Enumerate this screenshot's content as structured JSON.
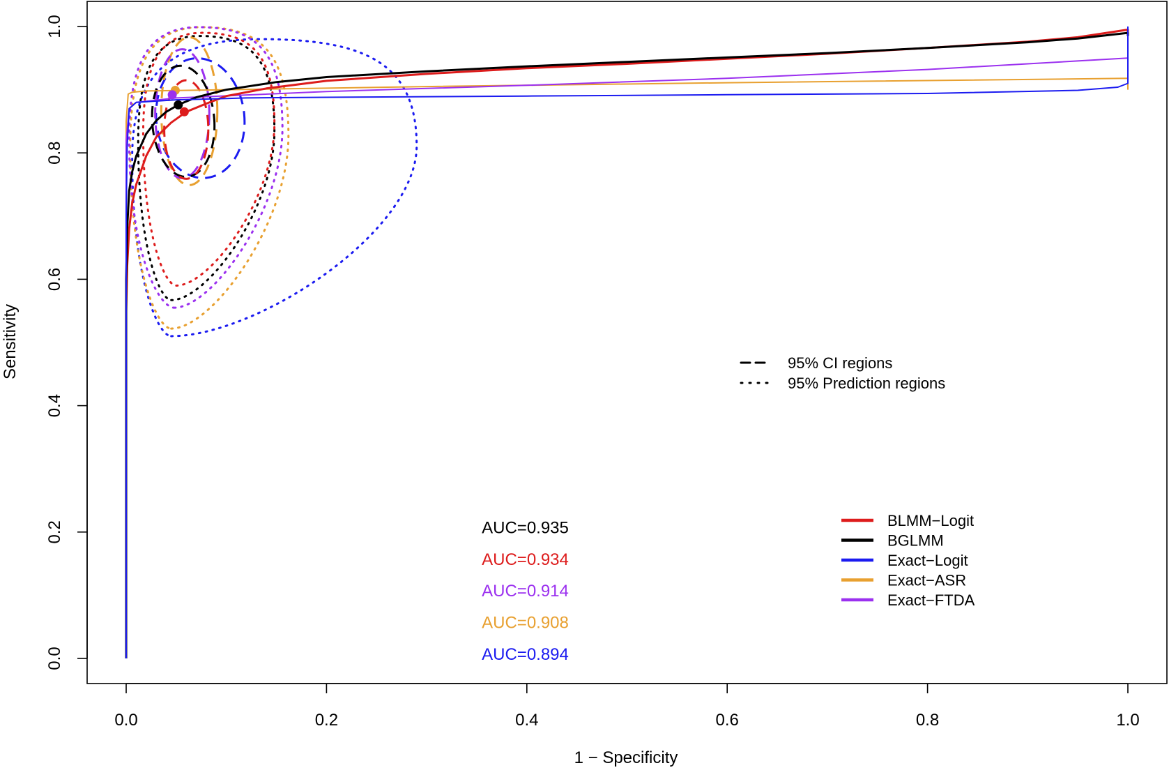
{
  "chart_data": {
    "type": "line",
    "title": "",
    "xlabel": "1 − Specificity",
    "ylabel": "Sensitivity",
    "xlim": [
      0,
      1
    ],
    "ylim": [
      0,
      1
    ],
    "x_ticks": [
      {
        "value": 0.0,
        "label": "0.0"
      },
      {
        "value": 0.2,
        "label": "0.2"
      },
      {
        "value": 0.4,
        "label": "0.4"
      },
      {
        "value": 0.6,
        "label": "0.6"
      },
      {
        "value": 0.8,
        "label": "0.8"
      },
      {
        "value": 1.0,
        "label": "1.0"
      }
    ],
    "y_ticks": [
      {
        "value": 0.0,
        "label": "0.0"
      },
      {
        "value": 0.2,
        "label": "0.2"
      },
      {
        "value": 0.4,
        "label": "0.4"
      },
      {
        "value": 0.6,
        "label": "0.6"
      },
      {
        "value": 0.8,
        "label": "0.8"
      },
      {
        "value": 1.0,
        "label": "1.0"
      }
    ],
    "grid": false,
    "colors": {
      "blmm": "#dd1c1c",
      "bglmm": "#000000",
      "exact_logit": "#1b1bf0",
      "exact_asr": "#e8a030",
      "exact_ftda": "#9b30ef"
    },
    "series": [
      {
        "key": "exact_asr",
        "name": "Exact−ASR",
        "color": "#e8a030",
        "width": 2,
        "x": [
          0,
          0,
          0.002,
          0.006,
          0.02,
          0.1,
          0.3,
          0.6,
          1.0,
          1.0
        ],
        "y": [
          0,
          0.85,
          0.893,
          0.896,
          0.898,
          0.9,
          0.905,
          0.911,
          0.918,
          0.9
        ]
      },
      {
        "key": "exact_ftda",
        "name": "Exact−FTDA",
        "color": "#9b30ef",
        "width": 2,
        "x": [
          0,
          0,
          0.003,
          0.01,
          0.05,
          0.2,
          0.4,
          0.6,
          0.8,
          1.0,
          1.0
        ],
        "y": [
          0,
          0.82,
          0.87,
          0.88,
          0.887,
          0.897,
          0.907,
          0.918,
          0.932,
          0.95,
          0.92
        ]
      },
      {
        "key": "blmm",
        "name": "BLMM−Logit",
        "color": "#dd1c1c",
        "width": 3,
        "x": [
          0,
          0,
          0.001,
          0.003,
          0.006,
          0.01,
          0.02,
          0.03,
          0.045,
          0.06,
          0.08,
          0.1,
          0.14,
          0.2,
          0.3,
          0.4,
          0.5,
          0.6,
          0.7,
          0.8,
          0.9,
          0.95,
          1.0,
          1.0
        ],
        "y": [
          0,
          0.55,
          0.62,
          0.68,
          0.72,
          0.75,
          0.795,
          0.825,
          0.848,
          0.865,
          0.878,
          0.89,
          0.902,
          0.914,
          0.925,
          0.934,
          0.941,
          0.949,
          0.957,
          0.966,
          0.976,
          0.983,
          0.995,
          0.99
        ]
      },
      {
        "key": "bglmm",
        "name": "BGLMM",
        "color": "#000000",
        "width": 3,
        "x": [
          0,
          0,
          0.001,
          0.003,
          0.006,
          0.01,
          0.02,
          0.03,
          0.04,
          0.052,
          0.07,
          0.1,
          0.15,
          0.2,
          0.3,
          0.4,
          0.5,
          0.6,
          0.7,
          0.8,
          0.9,
          0.95,
          1.0,
          1.0
        ],
        "y": [
          0,
          0.6,
          0.68,
          0.74,
          0.77,
          0.795,
          0.83,
          0.851,
          0.865,
          0.876,
          0.888,
          0.9,
          0.912,
          0.92,
          0.929,
          0.937,
          0.944,
          0.951,
          0.958,
          0.966,
          0.975,
          0.981,
          0.99,
          0.985
        ]
      },
      {
        "key": "exact_logit",
        "name": "Exact−Logit",
        "color": "#1b1bf0",
        "width": 2,
        "x": [
          0,
          0,
          0.001,
          0.003,
          0.01,
          0.05,
          0.1,
          0.12,
          0.2,
          0.4,
          0.6,
          0.8,
          0.95,
          0.99,
          1.0,
          1.0
        ],
        "y": [
          0,
          0.7,
          0.81,
          0.87,
          0.88,
          0.884,
          0.886,
          0.887,
          0.888,
          0.89,
          0.892,
          0.894,
          0.899,
          0.904,
          0.91,
          1.0
        ]
      }
    ],
    "ci_regions": [
      {
        "key": "exact_logit",
        "color": "#1b1bf0",
        "cx": 0.074,
        "cy": 0.855,
        "rx": 0.044,
        "ry": 0.095,
        "tilt": -6
      },
      {
        "key": "exact_asr",
        "color": "#e8a030",
        "cx": 0.063,
        "cy": 0.866,
        "rx": 0.028,
        "ry": 0.117,
        "tilt": 0
      },
      {
        "key": "exact_ftda",
        "color": "#9b30ef",
        "cx": 0.056,
        "cy": 0.862,
        "rx": 0.027,
        "ry": 0.102,
        "tilt": 0
      },
      {
        "key": "bglmm",
        "color": "#000000",
        "cx": 0.057,
        "cy": 0.85,
        "rx": 0.031,
        "ry": 0.088,
        "tilt": -4
      },
      {
        "key": "blmm",
        "color": "#dd1c1c",
        "cx": 0.06,
        "cy": 0.837,
        "rx": 0.022,
        "ry": 0.078,
        "tilt": 0
      }
    ],
    "prediction_regions": [
      {
        "key": "exact_logit",
        "color": "#1b1bf0",
        "bottom_x": 0.045,
        "bottom_y": 0.51,
        "left": 0.006,
        "right": 0.29,
        "top": 0.98
      },
      {
        "key": "exact_asr",
        "color": "#e8a030",
        "bottom_x": 0.045,
        "bottom_y": 0.522,
        "left": 0.004,
        "right": 0.162,
        "top": 0.999
      },
      {
        "key": "exact_ftda",
        "color": "#9b30ef",
        "bottom_x": 0.048,
        "bottom_y": 0.555,
        "left": 0.003,
        "right": 0.156,
        "top": 0.999
      },
      {
        "key": "bglmm",
        "color": "#000000",
        "bottom_x": 0.045,
        "bottom_y": 0.567,
        "left": 0.012,
        "right": 0.148,
        "top": 0.985
      },
      {
        "key": "blmm",
        "color": "#dd1c1c",
        "bottom_x": 0.05,
        "bottom_y": 0.59,
        "left": 0.017,
        "right": 0.148,
        "top": 0.99
      }
    ],
    "summary_points": [
      {
        "key": "blmm",
        "color": "#dd1c1c",
        "x": 0.058,
        "y": 0.865
      },
      {
        "key": "exact_asr",
        "color": "#e8a030",
        "x": 0.049,
        "y": 0.899
      },
      {
        "key": "exact_ftda",
        "color": "#9b30ef",
        "x": 0.046,
        "y": 0.892
      },
      {
        "key": "bglmm",
        "color": "#000000",
        "x": 0.052,
        "y": 0.876
      }
    ],
    "auc_annotations": [
      {
        "text": "AUC=0.935",
        "color": "#000000",
        "x": 0.355,
        "y": 0.198
      },
      {
        "text": "AUC=0.934",
        "color": "#dd1c1c",
        "x": 0.355,
        "y": 0.148
      },
      {
        "text": "AUC=0.914",
        "color": "#9b30ef",
        "x": 0.355,
        "y": 0.098
      },
      {
        "text": "AUC=0.908",
        "color": "#e8a030",
        "x": 0.355,
        "y": 0.048
      },
      {
        "text": "AUC=0.894",
        "color": "#1b1bf0",
        "x": 0.355,
        "y": -0.002
      }
    ],
    "region_legend": {
      "position": "center-right",
      "items": [
        {
          "label": "95% CI regions",
          "style": "dashed"
        },
        {
          "label": "95% Prediction regions",
          "style": "dotted"
        }
      ]
    },
    "legend": {
      "position": "bottom-right",
      "items": [
        {
          "label": "BLMM−Logit",
          "color": "#dd1c1c"
        },
        {
          "label": "BGLMM",
          "color": "#000000"
        },
        {
          "label": "Exact−Logit",
          "color": "#1b1bf0"
        },
        {
          "label": "Exact−ASR",
          "color": "#e8a030"
        },
        {
          "label": "Exact−FTDA",
          "color": "#9b30ef"
        }
      ]
    }
  }
}
